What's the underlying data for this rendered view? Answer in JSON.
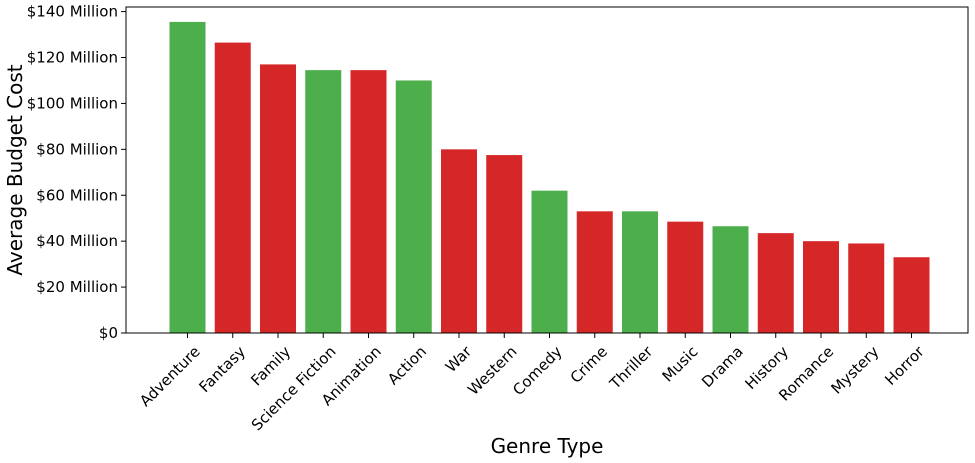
{
  "chart_data": {
    "type": "bar",
    "title": "",
    "xlabel": "Genre Type",
    "ylabel": "Average Budget Cost",
    "ylim": [
      0,
      142
    ],
    "yticks": [
      0,
      20,
      40,
      60,
      80,
      100,
      120,
      140
    ],
    "ytick_labels": [
      "$0",
      "$20 Million",
      "$40 Million",
      "$60 Million",
      "$80 Million",
      "$100 Million",
      "$120 Million",
      "$140 Million"
    ],
    "grid": false,
    "categories": [
      "Adventure",
      "Fantasy",
      "Family",
      "Science Fiction",
      "Animation",
      "Action",
      "War",
      "Western",
      "Comedy",
      "Crime",
      "Thriller",
      "Music",
      "Drama",
      "History",
      "Romance",
      "Mystery",
      "Horror"
    ],
    "values": [
      135.5,
      126.5,
      117,
      114.5,
      114.5,
      110,
      80,
      77.5,
      62,
      53,
      53,
      48.5,
      46.5,
      43.5,
      40,
      39,
      33
    ],
    "bar_colors": [
      "#4caf4c",
      "#d62728",
      "#d62728",
      "#4caf4c",
      "#d62728",
      "#4caf4c",
      "#d62728",
      "#d62728",
      "#4caf4c",
      "#d62728",
      "#4caf4c",
      "#d62728",
      "#4caf4c",
      "#d62728",
      "#d62728",
      "#d62728",
      "#d62728"
    ]
  }
}
